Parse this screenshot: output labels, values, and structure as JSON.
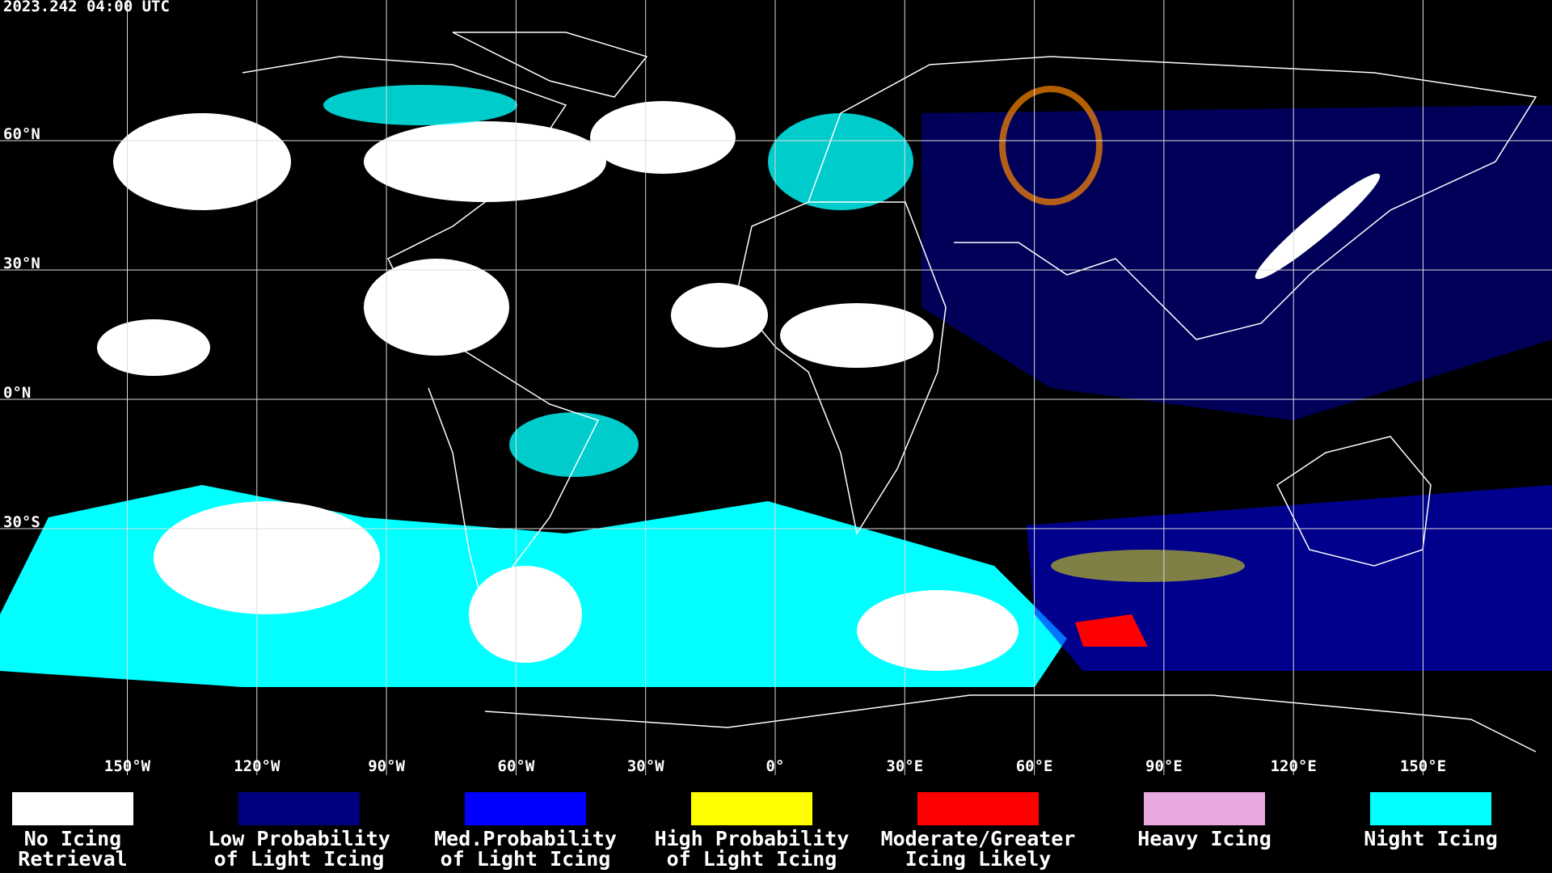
{
  "header": {
    "timestamp": "2023.242 04:00 UTC"
  },
  "map": {
    "longitude_labels": [
      "150°W",
      "120°W",
      "90°W",
      "60°W",
      "30°W",
      "0°",
      "30°E",
      "60°E",
      "90°E",
      "120°E",
      "150°E"
    ],
    "latitude_labels": [
      "60°N",
      "30°N",
      "0°N",
      "30°S"
    ]
  },
  "legend": {
    "items": [
      {
        "label": [
          "No Icing",
          "Retrieval"
        ],
        "color": "#ffffff"
      },
      {
        "label": [
          "Low Probability",
          "of Light Icing"
        ],
        "color": "#000080"
      },
      {
        "label": [
          "Med.Probability",
          "of Light Icing"
        ],
        "color": "#0000ff"
      },
      {
        "label": [
          "High Probability",
          "of Light Icing"
        ],
        "color": "#ffff00"
      },
      {
        "label": [
          "Moderate/Greater",
          "Icing Likely"
        ],
        "color": "#ff0000"
      },
      {
        "label": [
          "Heavy Icing"
        ],
        "color": "#e8a8e0"
      },
      {
        "label": [
          "Night Icing"
        ],
        "color": "#00ffff"
      }
    ]
  }
}
